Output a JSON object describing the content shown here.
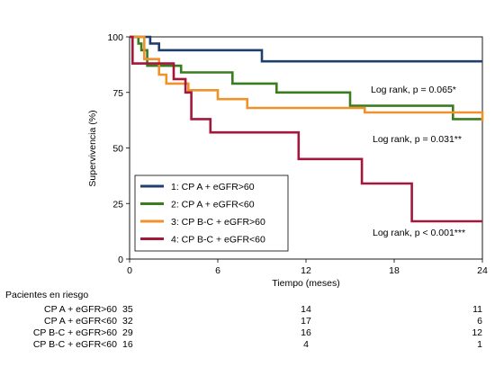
{
  "chart_data": {
    "type": "line",
    "subtype": "kaplan-meier step curves",
    "title": "",
    "xlabel": "Tiempo (meses)",
    "ylabel": "Supervivencia (%)",
    "xlim": [
      0,
      24
    ],
    "ylim": [
      0,
      100
    ],
    "x_ticks": [
      0,
      6,
      12,
      18,
      24
    ],
    "y_ticks": [
      0,
      25,
      50,
      75,
      100
    ],
    "grid": false,
    "legend_position": "bottom-left",
    "series": [
      {
        "name": "1: CP A + eGFR>60",
        "color": "#1f3f6e",
        "steps": [
          [
            0,
            100
          ],
          [
            1.4,
            100
          ],
          [
            1.4,
            97
          ],
          [
            2,
            97
          ],
          [
            2,
            94
          ],
          [
            9,
            94
          ],
          [
            9,
            89
          ],
          [
            24,
            89
          ]
        ]
      },
      {
        "name": "2: CP A + eGFR<60",
        "color": "#3a7d1f",
        "steps": [
          [
            0,
            100
          ],
          [
            0.6,
            100
          ],
          [
            0.6,
            97
          ],
          [
            0.8,
            97
          ],
          [
            0.8,
            94
          ],
          [
            1.2,
            94
          ],
          [
            1.2,
            87
          ],
          [
            3.5,
            87
          ],
          [
            3.5,
            84
          ],
          [
            7,
            84
          ],
          [
            7,
            79
          ],
          [
            10,
            79
          ],
          [
            10,
            75
          ],
          [
            15,
            75
          ],
          [
            15,
            69
          ],
          [
            22,
            69
          ],
          [
            22,
            63
          ],
          [
            24,
            63
          ]
        ]
      },
      {
        "name": "3: CP B-C + eGFR>60",
        "color": "#f0922b",
        "steps": [
          [
            0,
            100
          ],
          [
            1,
            100
          ],
          [
            1,
            90
          ],
          [
            2,
            90
          ],
          [
            2,
            83
          ],
          [
            2.5,
            83
          ],
          [
            2.5,
            79
          ],
          [
            4,
            79
          ],
          [
            4,
            76
          ],
          [
            6,
            76
          ],
          [
            6,
            72
          ],
          [
            8,
            72
          ],
          [
            8,
            68
          ],
          [
            16,
            68
          ],
          [
            16,
            66
          ],
          [
            24,
            66
          ],
          [
            24,
            62
          ]
        ]
      },
      {
        "name": "4: CP B-C + eGFR<60",
        "color": "#a3173a",
        "steps": [
          [
            0,
            100
          ],
          [
            0.2,
            100
          ],
          [
            0.2,
            88
          ],
          [
            3,
            88
          ],
          [
            3,
            81
          ],
          [
            3.8,
            81
          ],
          [
            3.8,
            75
          ],
          [
            4.2,
            75
          ],
          [
            4.2,
            63
          ],
          [
            5.5,
            63
          ],
          [
            5.5,
            57
          ],
          [
            11.5,
            57
          ],
          [
            11.5,
            45
          ],
          [
            15.8,
            45
          ],
          [
            15.8,
            34
          ],
          [
            19.2,
            34
          ],
          [
            19.2,
            17
          ],
          [
            24,
            17
          ]
        ]
      }
    ],
    "annotations": [
      {
        "text": "Log rank, p = 0.065*",
        "series_index": 1
      },
      {
        "text": "Log rank, p = 0.031**",
        "series_index": 2
      },
      {
        "text": "Log rank, p < 0.001***",
        "series_index": 3
      }
    ]
  },
  "risk_table": {
    "title": "Pacientes en riesgo",
    "time_points": [
      0,
      12,
      24
    ],
    "rows": [
      {
        "label": "CP A + eGFR>60",
        "values": [
          35,
          14,
          11
        ]
      },
      {
        "label": "CP A + eGFR<60",
        "values": [
          32,
          17,
          6
        ]
      },
      {
        "label": "CP B-C + eGFR>60",
        "values": [
          29,
          16,
          12
        ]
      },
      {
        "label": "CP B-C + eGFR<60",
        "values": [
          16,
          4,
          1
        ]
      }
    ]
  }
}
